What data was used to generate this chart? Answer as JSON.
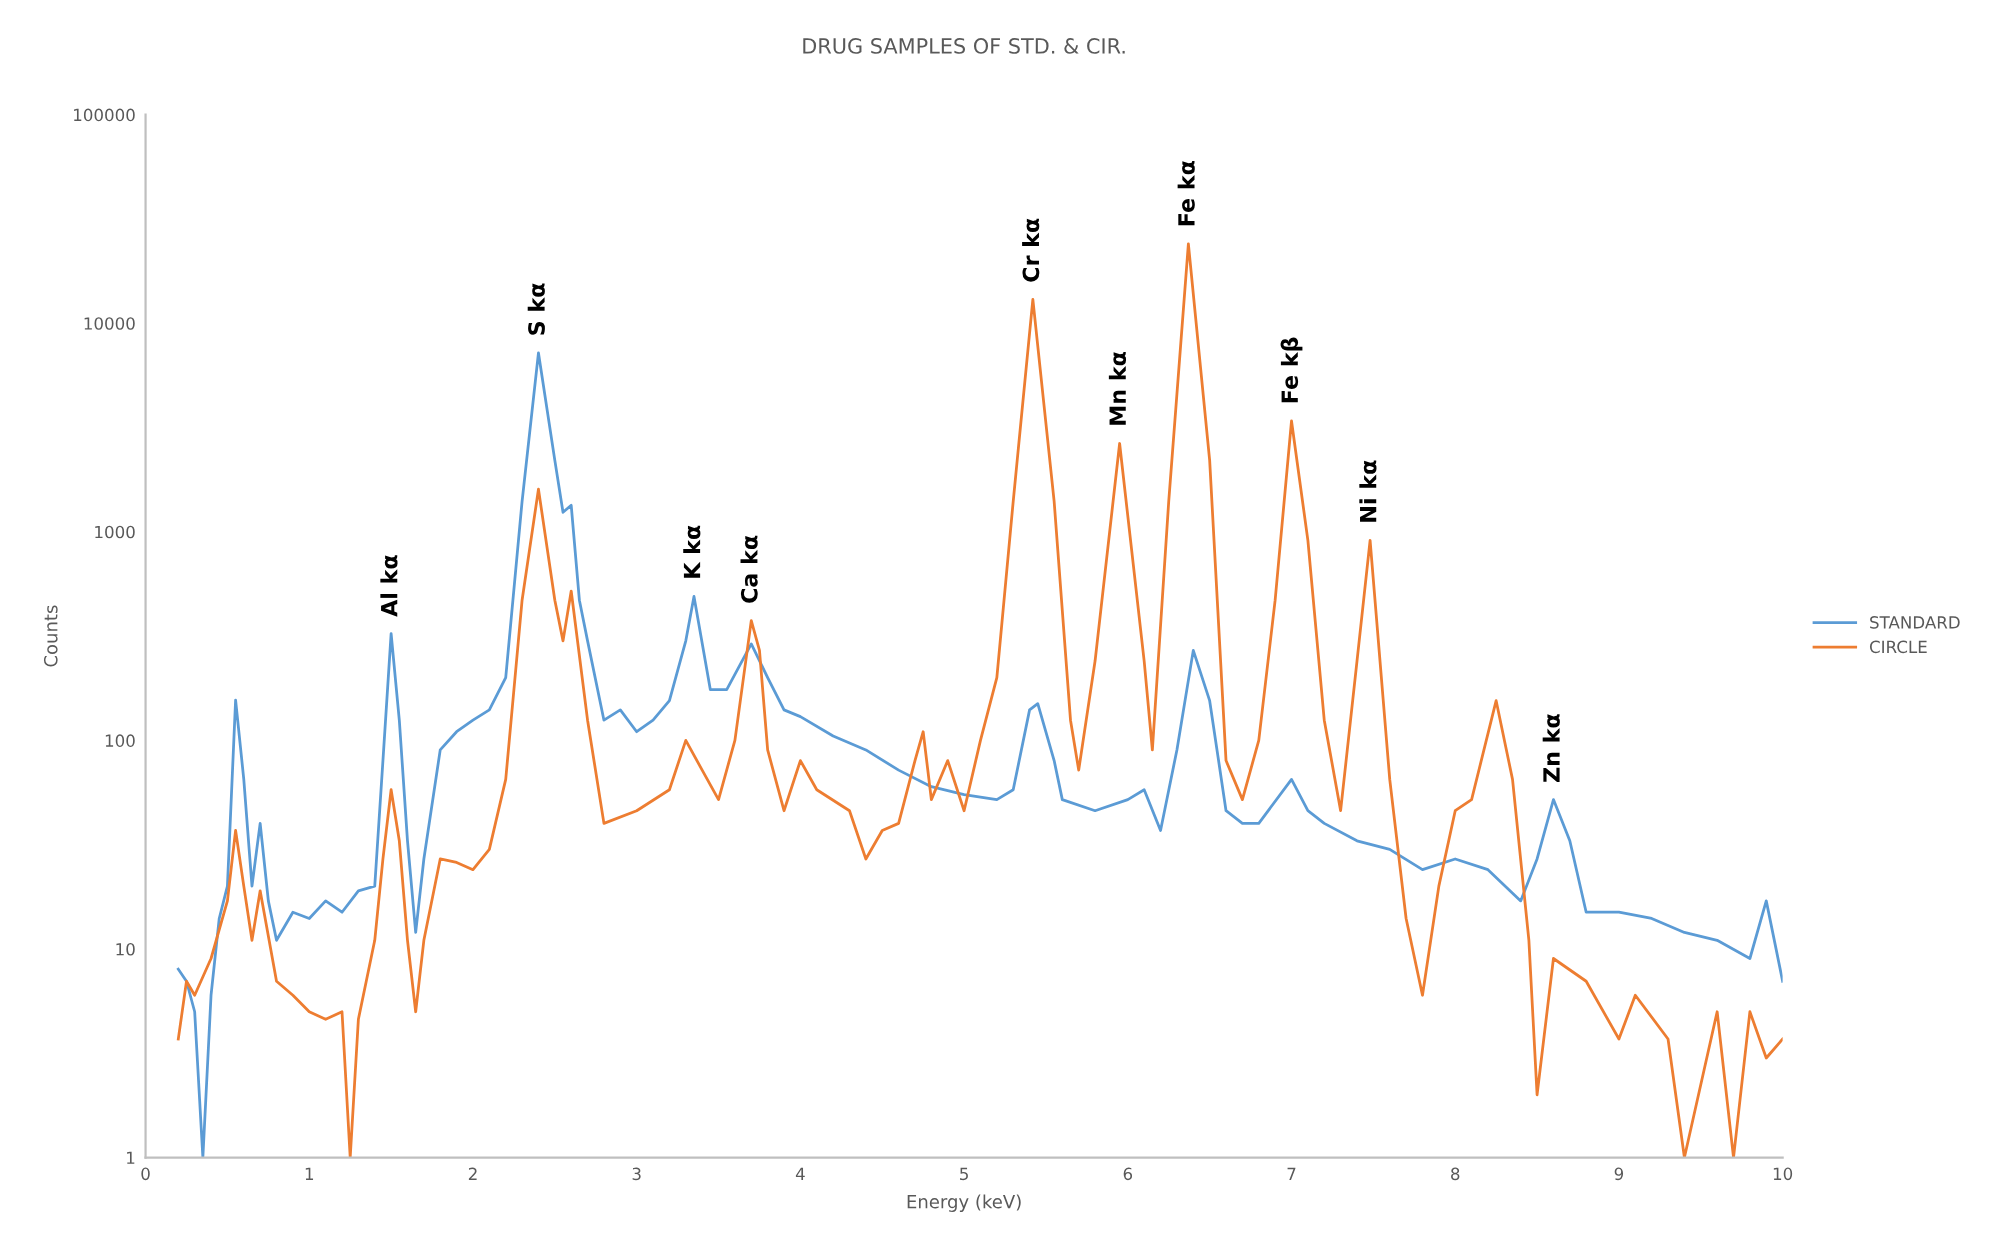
{
  "chart_data": {
    "type": "line",
    "title": "DRUG SAMPLES OF STD. & CIR.",
    "xlabel": "Energy (keV)",
    "ylabel": "Counts",
    "log": "y",
    "xlim": [
      0,
      10
    ],
    "xticks": [
      0,
      1,
      2,
      3,
      4,
      5,
      6,
      7,
      8,
      9,
      10
    ],
    "ylim": [
      1,
      100000
    ],
    "yticks": [
      1,
      10,
      100,
      1000,
      10000,
      100000
    ],
    "grid": false,
    "legend": "right",
    "marker": "none",
    "line_style": "solid",
    "series": [
      {
        "name": "STANDARD",
        "color": "#5b9bd5",
        "x": [
          0.2,
          0.25,
          0.3,
          0.35,
          0.4,
          0.45,
          0.5,
          0.55,
          0.6,
          0.65,
          0.7,
          0.75,
          0.8,
          0.9,
          1.0,
          1.1,
          1.2,
          1.3,
          1.4,
          1.45,
          1.5,
          1.55,
          1.6,
          1.65,
          1.7,
          1.8,
          1.9,
          2.0,
          2.1,
          2.2,
          2.3,
          2.4,
          2.5,
          2.55,
          2.6,
          2.65,
          2.7,
          2.8,
          2.9,
          3.0,
          3.1,
          3.2,
          3.3,
          3.35,
          3.45,
          3.55,
          3.7,
          3.8,
          3.9,
          4.0,
          4.2,
          4.4,
          4.6,
          4.8,
          5.0,
          5.2,
          5.3,
          5.4,
          5.45,
          5.55,
          5.6,
          5.8,
          6.0,
          6.1,
          6.2,
          6.3,
          6.4,
          6.5,
          6.6,
          6.7,
          6.8,
          7.0,
          7.1,
          7.2,
          7.4,
          7.6,
          7.8,
          8.0,
          8.2,
          8.4,
          8.5,
          8.6,
          8.7,
          8.8,
          9.0,
          9.2,
          9.4,
          9.6,
          9.8,
          9.9,
          10.0
        ],
        "values": [
          8,
          7,
          5,
          1,
          6,
          14,
          20,
          156,
          65,
          20,
          40,
          17,
          11,
          15,
          14,
          17,
          15,
          19,
          20,
          80,
          325,
          125,
          33,
          12,
          27,
          90,
          110,
          125,
          140,
          200,
          1400,
          7200,
          2200,
          1240,
          1340,
          470,
          300,
          125,
          140,
          110,
          125,
          155,
          300,
          490,
          175,
          175,
          290,
          200,
          140,
          130,
          105,
          90,
          72,
          60,
          55,
          52,
          58,
          140,
          150,
          80,
          52,
          46,
          52,
          58,
          37,
          90,
          270,
          155,
          46,
          40,
          40,
          65,
          46,
          40,
          33,
          30,
          24,
          27,
          24,
          17,
          27,
          52,
          33,
          15,
          15,
          14,
          12,
          11,
          9,
          17,
          7
        ]
      },
      {
        "name": "CIRCLE",
        "color": "#ed7d31",
        "x": [
          0.2,
          0.25,
          0.3,
          0.4,
          0.5,
          0.55,
          0.6,
          0.65,
          0.7,
          0.8,
          0.9,
          1.0,
          1.1,
          1.2,
          1.25,
          1.3,
          1.4,
          1.45,
          1.5,
          1.55,
          1.6,
          1.65,
          1.7,
          1.8,
          1.9,
          2.0,
          2.1,
          2.2,
          2.3,
          2.4,
          2.5,
          2.55,
          2.6,
          2.7,
          2.8,
          3.0,
          3.2,
          3.3,
          3.4,
          3.5,
          3.6,
          3.7,
          3.75,
          3.8,
          3.9,
          4.0,
          4.1,
          4.3,
          4.4,
          4.5,
          4.6,
          4.7,
          4.75,
          4.8,
          4.9,
          5.0,
          5.1,
          5.2,
          5.3,
          5.42,
          5.55,
          5.65,
          5.7,
          5.8,
          5.95,
          6.1,
          6.15,
          6.25,
          6.37,
          6.5,
          6.6,
          6.7,
          6.8,
          6.9,
          7.0,
          7.1,
          7.2,
          7.3,
          7.4,
          7.48,
          7.6,
          7.7,
          7.8,
          7.9,
          8.0,
          8.1,
          8.25,
          8.35,
          8.45,
          8.5,
          8.6,
          8.8,
          9.0,
          9.1,
          9.3,
          9.4,
          9.6,
          9.7,
          9.8,
          9.9,
          10.0
        ],
        "values": [
          3.7,
          7,
          6,
          9,
          17,
          37,
          20,
          11,
          19,
          7,
          6,
          5,
          4.6,
          5,
          1,
          4.6,
          11,
          27,
          58,
          33,
          11,
          5,
          11,
          27,
          26,
          24,
          30,
          65,
          470,
          1600,
          470,
          300,
          520,
          125,
          40,
          46,
          58,
          100,
          72,
          52,
          100,
          375,
          270,
          90,
          46,
          80,
          58,
          46,
          27,
          37,
          40,
          80,
          110,
          52,
          80,
          46,
          100,
          200,
          1400,
          13000,
          1400,
          125,
          72,
          240,
          2650,
          240,
          90,
          1400,
          24000,
          2200,
          80,
          52,
          100,
          470,
          3400,
          910,
          125,
          46,
          240,
          910,
          65,
          14,
          6,
          20,
          46,
          52,
          155,
          65,
          11,
          2,
          9,
          7,
          3.7,
          6,
          3.7,
          1,
          5,
          1,
          5,
          3,
          3.7
        ]
      }
    ],
    "annotations": [
      {
        "text": "Al kα",
        "x": 1.5,
        "y": 325
      },
      {
        "text": "S kα",
        "x": 2.4,
        "y": 7200
      },
      {
        "text": "K kα",
        "x": 3.35,
        "y": 490
      },
      {
        "text": "Ca kα",
        "x": 3.7,
        "y": 375
      },
      {
        "text": "Cr kα",
        "x": 5.42,
        "y": 13000
      },
      {
        "text": "Mn kα",
        "x": 5.95,
        "y": 2650
      },
      {
        "text": "Fe kα",
        "x": 6.37,
        "y": 24000
      },
      {
        "text": "Fe kβ",
        "x": 7.0,
        "y": 3400
      },
      {
        "text": "Ni kα",
        "x": 7.48,
        "y": 910
      },
      {
        "text": "Zn kα",
        "x": 8.6,
        "y": 52
      }
    ]
  }
}
